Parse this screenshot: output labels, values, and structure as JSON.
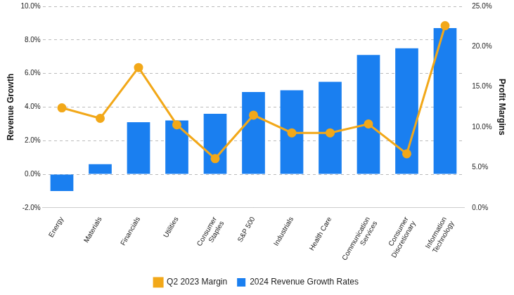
{
  "chart_data": {
    "type": "bar",
    "categories": [
      "Energy",
      "Materials",
      "Financials",
      "Utilities",
      "Consumer Staples",
      "S&P 500",
      "Industrials",
      "Health Care",
      "Communication Services",
      "Consumer Discretionary",
      "Information Technology"
    ],
    "series": [
      {
        "name": "2024 Revenue Growth Rates",
        "type": "bar",
        "color": "#1a7ff0",
        "values": [
          -1.0,
          0.6,
          3.1,
          3.2,
          3.6,
          4.9,
          5.0,
          5.5,
          7.1,
          7.5,
          8.7
        ]
      },
      {
        "name": "Q2 2023 Margin",
        "type": "line",
        "color": "#f2a819",
        "marker": "circle",
        "axis": "y2",
        "values": [
          12.4,
          11.1,
          17.4,
          10.3,
          6.1,
          11.5,
          9.3,
          9.3,
          10.4,
          6.7,
          22.6
        ]
      }
    ],
    "y_label": "Revenue Growth",
    "y2_label": "Profit Margins",
    "ylim": [
      -2,
      10
    ],
    "yticks": [
      {
        "value": -2,
        "label": "-2.0%"
      },
      {
        "value": 0,
        "label": "0.0%"
      },
      {
        "value": 2,
        "label": "2.0%"
      },
      {
        "value": 4,
        "label": "4.0%"
      },
      {
        "value": 6,
        "label": "6.0%"
      },
      {
        "value": 8,
        "label": "8.0%"
      },
      {
        "value": 10,
        "label": "10.0%"
      }
    ],
    "y2lim": [
      0,
      25
    ],
    "y2ticks": [
      {
        "value": 0,
        "label": "0.0%"
      },
      {
        "value": 5,
        "label": "5.0%"
      },
      {
        "value": 10,
        "label": "10.0%"
      },
      {
        "value": 15,
        "label": "15.0%"
      },
      {
        "value": 20,
        "label": "20.0%"
      },
      {
        "value": 25,
        "label": "25.0%"
      }
    ],
    "grid": true,
    "legend": "bottom"
  }
}
